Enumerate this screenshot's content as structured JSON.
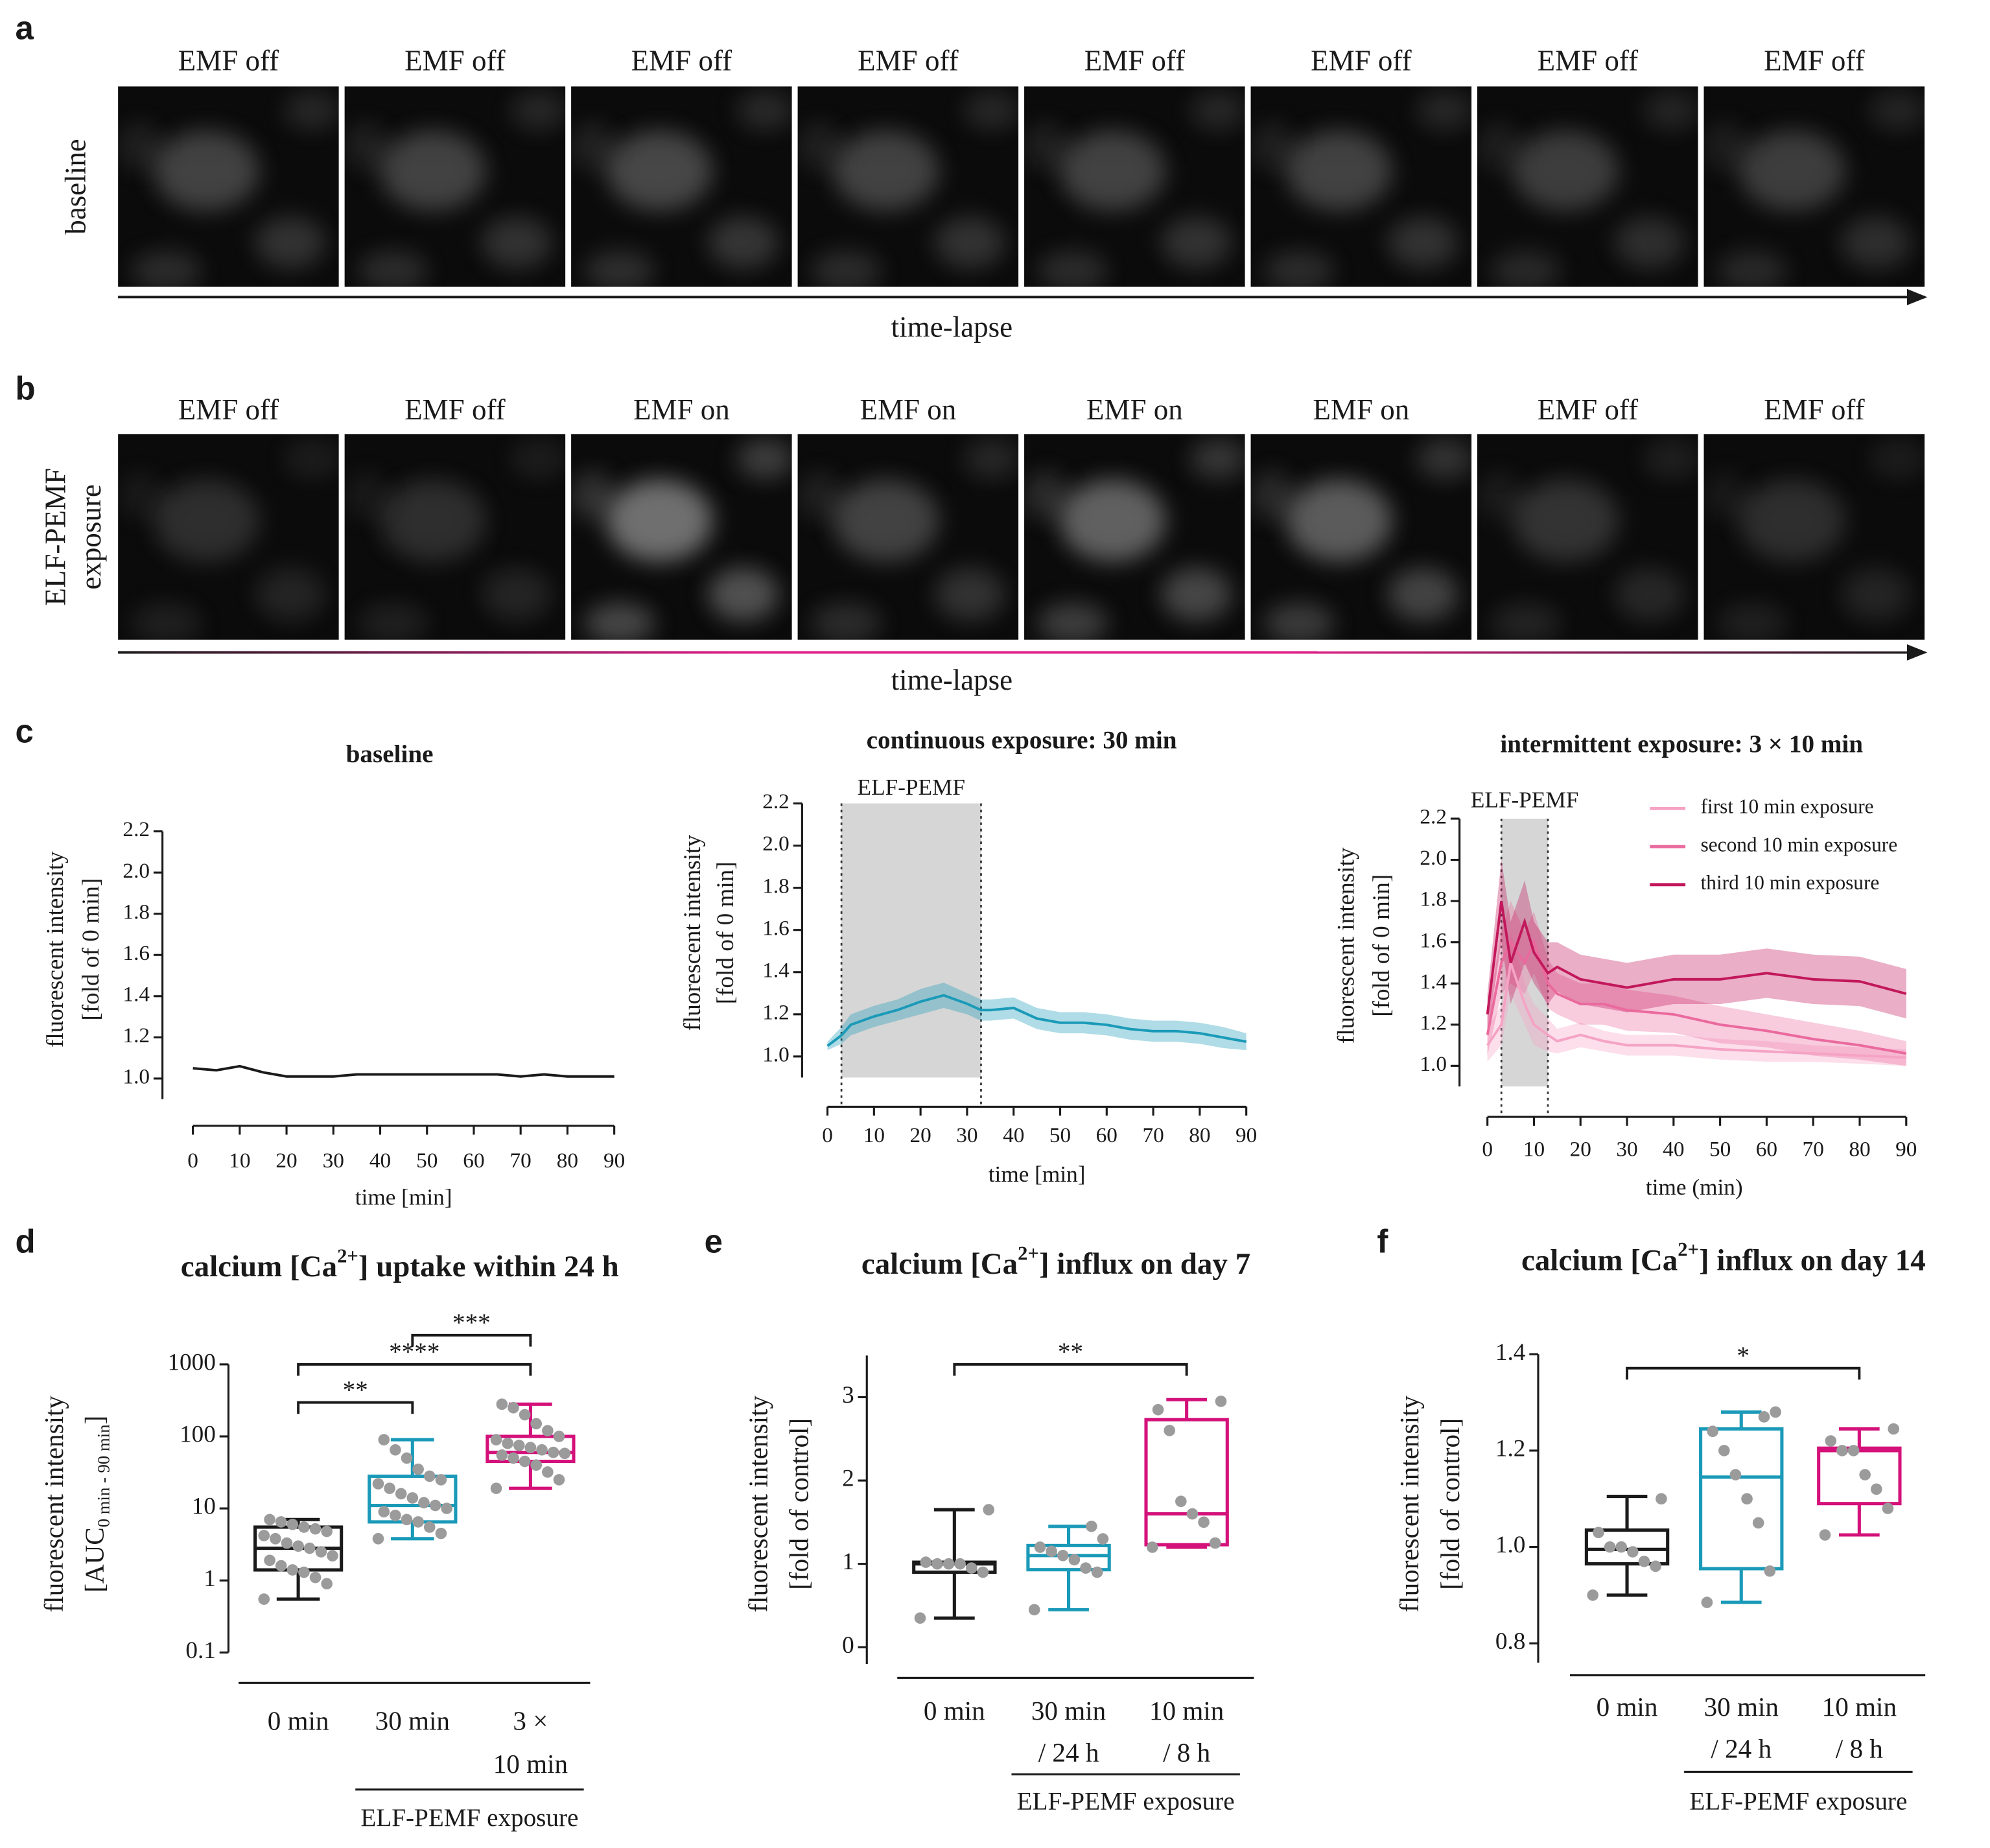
{
  "panel_labels": [
    "a",
    "b",
    "c",
    "d",
    "e",
    "f"
  ],
  "image_panels": [
    {
      "row_label": [
        "baseline"
      ],
      "axis_label": "time-lapse",
      "frames": [
        {
          "label": "EMF off",
          "color": "#1a1a1a"
        },
        {
          "label": "EMF off",
          "color": "#1a1a1a"
        },
        {
          "label": "EMF off",
          "color": "#1a1a1a"
        },
        {
          "label": "EMF off",
          "color": "#1a1a1a"
        },
        {
          "label": "EMF off",
          "color": "#1a1a1a"
        },
        {
          "label": "EMF off",
          "color": "#1a1a1a"
        },
        {
          "label": "EMF off",
          "color": "#1a1a1a"
        },
        {
          "label": "EMF off",
          "color": "#1a1a1a"
        }
      ]
    },
    {
      "row_label": [
        "ELF-PEMF",
        "exposure"
      ],
      "axis_label": "time-lapse",
      "frames": [
        {
          "label": "EMF off",
          "color": "#1a1a1a"
        },
        {
          "label": "EMF off",
          "color": "#1a1a1a"
        },
        {
          "label": "EMF on",
          "color": "#e0208a"
        },
        {
          "label": "EMF on",
          "color": "#e0208a"
        },
        {
          "label": "EMF on",
          "color": "#e0208a"
        },
        {
          "label": "EMF on",
          "color": "#e0208a"
        },
        {
          "label": "EMF off",
          "color": "#1a1a1a"
        },
        {
          "label": "EMF off",
          "color": "#1a1a1a"
        }
      ]
    }
  ],
  "chart_data": [
    {
      "type": "line",
      "title": "baseline",
      "ylabel": [
        [
          "fluorescent intensity"
        ],
        [
          "[fold of 0 min]"
        ]
      ],
      "xlabel": "time [min]",
      "x": [
        0,
        5,
        10,
        15,
        20,
        25,
        30,
        35,
        40,
        45,
        50,
        55,
        60,
        65,
        70,
        75,
        80,
        85,
        90
      ],
      "series": [
        {
          "color": "#1a1a1a",
          "values": [
            1.05,
            1.04,
            1.06,
            1.03,
            1.01,
            1.01,
            1.01,
            1.02,
            1.02,
            1.02,
            1.02,
            1.02,
            1.02,
            1.02,
            1.01,
            1.02,
            1.01,
            1.01,
            1.01
          ]
        }
      ],
      "xlim": [
        0,
        90
      ],
      "xticks": [
        0,
        10,
        20,
        30,
        40,
        50,
        60,
        70,
        80,
        90
      ],
      "ylim": [
        0.9,
        2.2
      ],
      "yticks": [
        {
          "value": 1,
          "label": "1.0"
        },
        1.2,
        1.4,
        1.6,
        1.8,
        {
          "value": 2,
          "label": "2.0"
        },
        2.2
      ]
    },
    {
      "type": "line",
      "title": "continuous exposure: 30 min",
      "ylabel": [
        [
          "fluorescent intensity"
        ],
        [
          "[fold of 0 min]"
        ]
      ],
      "xlabel": "time [min]",
      "shaded_region": {
        "label": "ELF-PEMF",
        "x": [
          3,
          33
        ]
      },
      "x": [
        0,
        3,
        5,
        10,
        15,
        20,
        25,
        30,
        33,
        35,
        40,
        45,
        50,
        55,
        60,
        65,
        70,
        75,
        80,
        85,
        90
      ],
      "series": [
        {
          "color": "#1a9ab8",
          "values": [
            1.05,
            1.1,
            1.15,
            1.19,
            1.22,
            1.26,
            1.29,
            1.25,
            1.22,
            1.22,
            1.23,
            1.18,
            1.16,
            1.16,
            1.15,
            1.13,
            1.12,
            1.12,
            1.11,
            1.09,
            1.07
          ],
          "error": [
            0.02,
            0.04,
            0.05,
            0.05,
            0.05,
            0.06,
            0.06,
            0.05,
            0.05,
            0.05,
            0.05,
            0.05,
            0.05,
            0.05,
            0.05,
            0.05,
            0.05,
            0.05,
            0.05,
            0.05,
            0.04
          ]
        }
      ],
      "xlim": [
        0,
        90
      ],
      "xticks": [
        0,
        10,
        20,
        30,
        40,
        50,
        60,
        70,
        80,
        90
      ],
      "ylim": [
        0.9,
        2.2
      ],
      "yticks": [
        {
          "value": 1,
          "label": "1.0"
        },
        1.2,
        1.4,
        1.6,
        1.8,
        {
          "value": 2,
          "label": "2.0"
        },
        2.2
      ]
    },
    {
      "type": "line",
      "title": "intermittent exposure: 3 × 10 min",
      "ylabel": [
        [
          "fluorescent intensity"
        ],
        [
          "[fold of 0 min]"
        ]
      ],
      "xlabel": "time (min)",
      "shaded_region": {
        "label": "ELF-PEMF",
        "x": [
          3,
          13
        ]
      },
      "x": [
        0,
        3,
        5,
        8,
        10,
        13,
        15,
        20,
        25,
        30,
        40,
        50,
        60,
        70,
        80,
        90
      ],
      "series": [
        {
          "name": "first 10 min exposure",
          "color": "#f5a3c5",
          "values": [
            1.1,
            1.2,
            1.5,
            1.3,
            1.2,
            1.15,
            1.12,
            1.15,
            1.12,
            1.1,
            1.1,
            1.08,
            1.07,
            1.06,
            1.05,
            1.04
          ],
          "error": [
            0.08,
            0.1,
            0.15,
            0.1,
            0.1,
            0.08,
            0.06,
            0.06,
            0.05,
            0.05,
            0.05,
            0.05,
            0.05,
            0.04,
            0.04,
            0.04
          ]
        },
        {
          "name": "second 10 min exposure",
          "color": "#ea6a9e",
          "values": [
            1.15,
            1.5,
            1.6,
            1.5,
            1.6,
            1.4,
            1.35,
            1.3,
            1.3,
            1.27,
            1.25,
            1.2,
            1.17,
            1.13,
            1.1,
            1.06
          ],
          "error": [
            0.1,
            0.15,
            0.2,
            0.15,
            0.15,
            0.12,
            0.1,
            0.1,
            0.1,
            0.1,
            0.09,
            0.09,
            0.08,
            0.08,
            0.07,
            0.06
          ]
        },
        {
          "name": "third 10 min exposure",
          "color": "#c2185b",
          "values": [
            1.25,
            1.8,
            1.5,
            1.7,
            1.55,
            1.45,
            1.48,
            1.42,
            1.4,
            1.38,
            1.42,
            1.42,
            1.45,
            1.42,
            1.41,
            1.35
          ],
          "error": [
            0.1,
            0.2,
            0.2,
            0.2,
            0.15,
            0.15,
            0.12,
            0.12,
            0.12,
            0.12,
            0.12,
            0.12,
            0.12,
            0.12,
            0.12,
            0.12
          ]
        }
      ],
      "xlim": [
        0,
        90
      ],
      "xticks": [
        0,
        10,
        20,
        30,
        40,
        50,
        60,
        70,
        80,
        90
      ],
      "ylim": [
        0.9,
        2.2
      ],
      "yticks": [
        {
          "value": 1,
          "label": "1.0"
        },
        1.2,
        1.4,
        1.6,
        1.8,
        {
          "value": 2,
          "label": "2.0"
        },
        2.2
      ],
      "legend": "upper right"
    },
    {
      "type": "box",
      "title": [
        "calcium [Ca",
        "2+",
        "] uptake within 24 h"
      ],
      "ylabel": [
        [
          "fluorescent intensity"
        ],
        [
          "[AUC",
          "0 min - 90 min",
          "]"
        ]
      ],
      "categories": [
        [
          "0 min"
        ],
        [
          "30 min"
        ],
        [
          "3 ×",
          "10 min"
        ]
      ],
      "group_label": "ELF-PEMF exposure",
      "group_span": [
        1,
        2
      ],
      "log": true,
      "ylim": [
        0.1,
        1000
      ],
      "yticks": [
        0.1,
        1,
        10,
        100,
        1000
      ],
      "boxes": [
        {
          "color": "#1a1a1a",
          "min": 0.55,
          "q1": 1.4,
          "median": 2.8,
          "q3": 5.5,
          "max": 7,
          "points": [
            0.55,
            0.9,
            1.1,
            1.3,
            1.4,
            1.6,
            1.9,
            2.2,
            2.5,
            2.8,
            3,
            3.3,
            3.8,
            4.2,
            4.8,
            5.2,
            5.5,
            6,
            6.5,
            7
          ]
        },
        {
          "color": "#1a9ab8",
          "min": 3.8,
          "q1": 6.5,
          "median": 11,
          "q3": 28,
          "max": 90,
          "points": [
            3.8,
            4.5,
            5.5,
            6.5,
            7,
            8,
            9,
            10,
            11,
            12,
            14,
            16,
            19,
            22,
            25,
            28,
            35,
            50,
            65,
            90
          ]
        },
        {
          "color": "#d4117a",
          "min": 19,
          "q1": 45,
          "median": 60,
          "q3": 100,
          "max": 280,
          "points": [
            19,
            25,
            32,
            40,
            45,
            50,
            55,
            58,
            60,
            65,
            70,
            75,
            80,
            90,
            100,
            120,
            150,
            200,
            250,
            280
          ]
        }
      ],
      "significance": [
        {
          "pair": [
            0,
            1
          ],
          "label": "**"
        },
        {
          "pair": [
            0,
            2
          ],
          "label": "****"
        },
        {
          "pair": [
            1,
            2
          ],
          "label": "***"
        }
      ]
    },
    {
      "type": "box",
      "title": [
        "calcium [Ca",
        "2+",
        "] influx on day 7"
      ],
      "ylabel": [
        [
          "fluorescent intensity"
        ],
        [
          "[fold of control]"
        ]
      ],
      "categories": [
        [
          "0 min"
        ],
        [
          "30 min",
          "/ 24 h"
        ],
        [
          "10 min",
          "/ 8 h"
        ]
      ],
      "group_label": "ELF-PEMF exposure",
      "group_span": [
        1,
        2
      ],
      "ylim": [
        -0.2,
        3.5
      ],
      "yticks": [
        0,
        1,
        2,
        3
      ],
      "boxes": [
        {
          "color": "#1a1a1a",
          "min": 0.35,
          "q1": 0.9,
          "median": 1,
          "q3": 1.02,
          "max": 1.65,
          "points": [
            0.35,
            0.9,
            0.95,
            1,
            1,
            1,
            1.02,
            1.65
          ]
        },
        {
          "color": "#1a9ab8",
          "min": 0.45,
          "q1": 0.93,
          "median": 1.1,
          "q3": 1.22,
          "max": 1.45,
          "points": [
            0.45,
            0.9,
            0.95,
            1.05,
            1.1,
            1.15,
            1.2,
            1.3,
            1.45
          ]
        },
        {
          "color": "#d4117a",
          "min": 1.2,
          "q1": 1.23,
          "median": 1.6,
          "q3": 2.73,
          "max": 2.97,
          "points": [
            1.2,
            1.25,
            1.5,
            1.6,
            1.75,
            2.6,
            2.85,
            2.95
          ]
        }
      ],
      "significance": [
        {
          "pair": [
            0,
            2
          ],
          "label": "**"
        }
      ]
    },
    {
      "type": "box",
      "title": [
        "calcium [Ca",
        "2+",
        "] influx on day 14"
      ],
      "ylabel": [
        [
          "fluorescent intensity"
        ],
        [
          "[fold of control]"
        ]
      ],
      "categories": [
        [
          "0 min"
        ],
        [
          "30 min",
          "/ 24 h"
        ],
        [
          "10 min",
          "/ 8 h"
        ]
      ],
      "group_label": "ELF-PEMF exposure",
      "group_span": [
        1,
        2
      ],
      "ylim": [
        0.76,
        1.4
      ],
      "yticks": [
        0.8,
        {
          "value": 1,
          "label": "1.0"
        },
        1.2,
        1.4
      ],
      "boxes": [
        {
          "color": "#1a1a1a",
          "min": 0.9,
          "q1": 0.965,
          "median": 0.995,
          "q3": 1.035,
          "max": 1.105,
          "points": [
            0.9,
            0.96,
            0.97,
            0.99,
            1,
            1,
            1.03,
            1.1
          ]
        },
        {
          "color": "#1a9ab8",
          "min": 0.885,
          "q1": 0.955,
          "median": 1.145,
          "q3": 1.245,
          "max": 1.28,
          "points": [
            0.885,
            0.95,
            1.05,
            1.1,
            1.15,
            1.2,
            1.24,
            1.28,
            1.27
          ]
        },
        {
          "color": "#d4117a",
          "min": 1.025,
          "q1": 1.09,
          "median": 1.2,
          "q3": 1.205,
          "max": 1.245,
          "points": [
            1.025,
            1.08,
            1.12,
            1.15,
            1.2,
            1.2,
            1.22,
            1.245
          ]
        }
      ],
      "significance": [
        {
          "pair": [
            0,
            2
          ],
          "label": "*"
        }
      ]
    }
  ]
}
